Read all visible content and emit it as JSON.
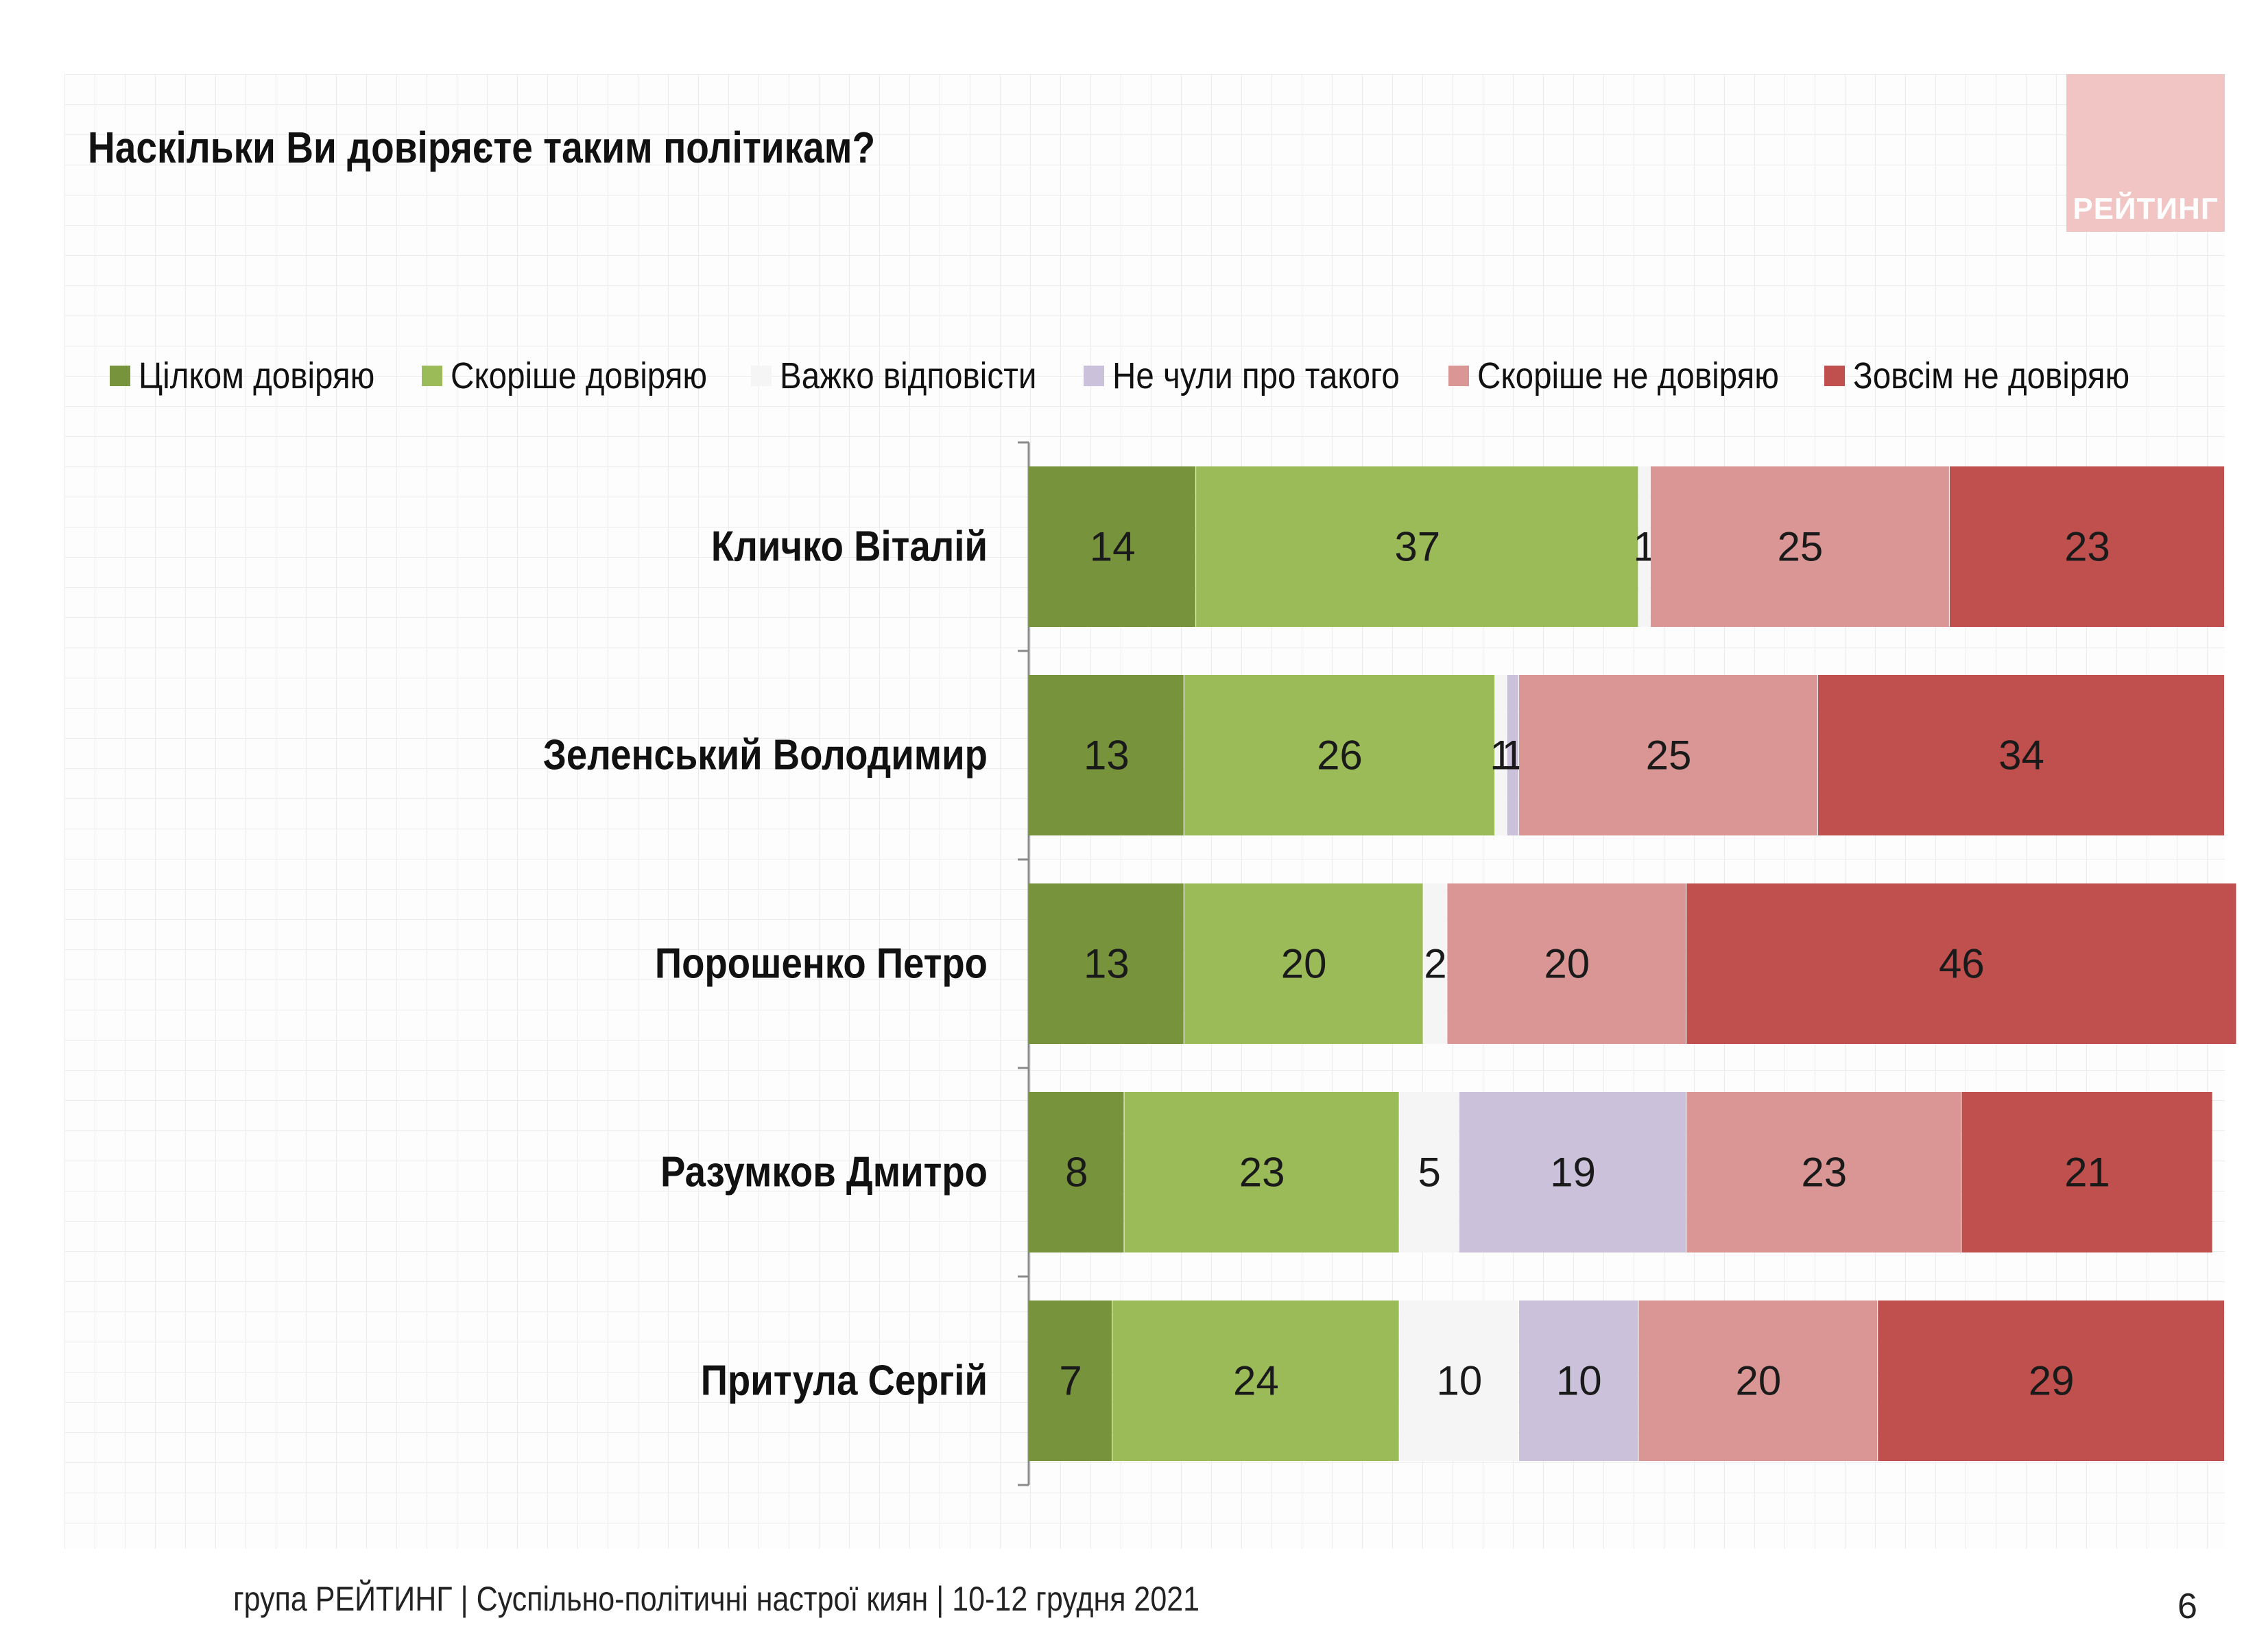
{
  "title": "Наскільки Ви довіряєте таким політикам?",
  "logo": {
    "text": "РЕЙТИНГ",
    "color": "#f2c5c5"
  },
  "footer": {
    "text": "група РЕЙТИНГ | Суспільно-політичні настрої киян | 10-12 грудня 2021",
    "page": "6"
  },
  "chart_data": {
    "type": "bar",
    "orientation": "horizontal",
    "stacked": true,
    "xlim": [
      0,
      100
    ],
    "title": "Наскільки Ви довіряєте таким політикам?",
    "legend_position": "top",
    "grid": false,
    "categories": [
      "Кличко Віталій",
      "Зеленський Володимир",
      "Порошенко Петро",
      "Разумков Дмитро",
      "Притула Сергій"
    ],
    "series": [
      {
        "name": "Цілком довіряю",
        "color": "#77933c",
        "values": [
          14,
          13,
          13,
          8,
          7
        ]
      },
      {
        "name": "Скоріше довіряю",
        "color": "#9bbb59",
        "values": [
          37,
          26,
          20,
          23,
          24
        ]
      },
      {
        "name": "Важко відповісти",
        "color": "#f5f5f5",
        "values": [
          1,
          1,
          2,
          5,
          10
        ]
      },
      {
        "name": "Не чули про такого",
        "color": "#ccc1da",
        "values": [
          0,
          1,
          0,
          19,
          10
        ]
      },
      {
        "name": "Скоріше не довіряю",
        "color": "#d99694",
        "values": [
          25,
          25,
          20,
          23,
          20
        ]
      },
      {
        "name": "Зовсім не довіряю",
        "color": "#c0504d",
        "values": [
          23,
          34,
          46,
          21,
          29
        ]
      }
    ]
  }
}
